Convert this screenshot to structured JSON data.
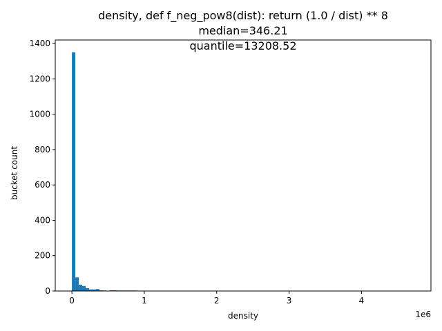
{
  "chart_data": {
    "type": "bar",
    "title": "density, def f_neg_pow8(dist): return (1.0 / dist) ** 8",
    "subtitle_lines": [
      "median=346.21",
      "quantile=13208.52"
    ],
    "xlabel": "density",
    "ylabel": "bucket count",
    "x_offset_label": "1e6",
    "xlim": [
      -230000,
      4960000
    ],
    "ylim": [
      0,
      1420
    ],
    "x_ticks": [
      0,
      1,
      2,
      3,
      4
    ],
    "x_tick_multiplier": 1000000,
    "y_ticks": [
      0,
      200,
      400,
      600,
      800,
      1000,
      1200,
      1400
    ],
    "bar_color": "#1f77b4",
    "bin_width": 47500,
    "bins": [
      {
        "x": 0,
        "count": 1350
      },
      {
        "x": 47500,
        "count": 77
      },
      {
        "x": 95000,
        "count": 36
      },
      {
        "x": 142500,
        "count": 28
      },
      {
        "x": 190000,
        "count": 16
      },
      {
        "x": 237500,
        "count": 9
      },
      {
        "x": 285000,
        "count": 9
      },
      {
        "x": 332500,
        "count": 11
      },
      {
        "x": 380000,
        "count": 4
      },
      {
        "x": 427500,
        "count": 3
      },
      {
        "x": 475000,
        "count": 2
      },
      {
        "x": 522500,
        "count": 4
      },
      {
        "x": 570000,
        "count": 4
      },
      {
        "x": 617500,
        "count": 3
      },
      {
        "x": 665000,
        "count": 3
      },
      {
        "x": 712500,
        "count": 3
      },
      {
        "x": 760000,
        "count": 3
      },
      {
        "x": 807500,
        "count": 3
      },
      {
        "x": 855000,
        "count": 3
      },
      {
        "x": 902500,
        "count": 2
      },
      {
        "x": 1045000,
        "count": 2
      },
      {
        "x": 1187500,
        "count": 2
      },
      {
        "x": 1282500,
        "count": 2
      },
      {
        "x": 1425000,
        "count": 2
      },
      {
        "x": 1520000,
        "count": 2
      },
      {
        "x": 1662500,
        "count": 2
      },
      {
        "x": 1710000,
        "count": 2
      },
      {
        "x": 4702500,
        "count": 2
      }
    ]
  }
}
